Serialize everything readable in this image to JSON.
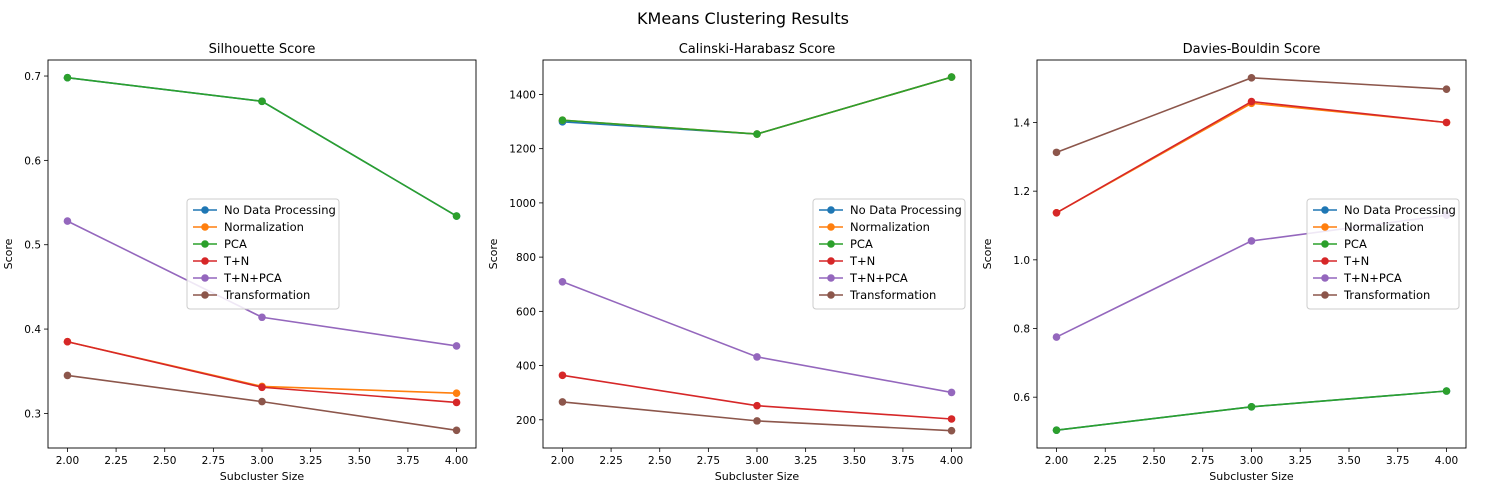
{
  "figure_title": "KMeans Clustering Results",
  "chart_data": [
    {
      "type": "line",
      "title": "Silhouette Score",
      "xlabel": "Subcluster Size",
      "ylabel": "Score",
      "x": [
        2,
        3,
        4
      ],
      "xlim": [
        1.9,
        4.1
      ],
      "ylim": [
        0.259,
        0.719
      ],
      "xticks": [
        "2.00",
        "2.25",
        "2.50",
        "2.75",
        "3.00",
        "3.25",
        "3.50",
        "3.75",
        "4.00"
      ],
      "yticks": [
        "0.3",
        "0.4",
        "0.5",
        "0.6",
        "0.7"
      ],
      "legend_position": "center-right",
      "series": [
        {
          "name": "No Data Processing",
          "color": "#1f77b4",
          "values": [
            0.698,
            0.67,
            0.534
          ]
        },
        {
          "name": "Normalization",
          "color": "#ff7f0e",
          "values": [
            0.385,
            0.332,
            0.324
          ]
        },
        {
          "name": "PCA",
          "color": "#2ca02c",
          "values": [
            0.698,
            0.67,
            0.534
          ]
        },
        {
          "name": "T+N",
          "color": "#d62728",
          "values": [
            0.385,
            0.331,
            0.313
          ]
        },
        {
          "name": "T+N+PCA",
          "color": "#9467bd",
          "values": [
            0.528,
            0.414,
            0.38
          ]
        },
        {
          "name": "Transformation",
          "color": "#8c564b",
          "values": [
            0.345,
            0.314,
            0.28
          ]
        }
      ]
    },
    {
      "type": "line",
      "title": "Calinski-Harabasz Score",
      "xlabel": "Subcluster Size",
      "ylabel": "Score",
      "x": [
        2,
        3,
        4
      ],
      "xlim": [
        1.9,
        4.1
      ],
      "ylim": [
        96,
        1527
      ],
      "xticks": [
        "2.00",
        "2.25",
        "2.50",
        "2.75",
        "3.00",
        "3.25",
        "3.50",
        "3.75",
        "4.00"
      ],
      "yticks": [
        "200",
        "400",
        "600",
        "800",
        "1000",
        "1200",
        "1400"
      ],
      "legend_position": "center-right",
      "series": [
        {
          "name": "No Data Processing",
          "color": "#1f77b4",
          "values": [
            1299,
            1254,
            1464
          ]
        },
        {
          "name": "Normalization",
          "color": "#ff7f0e",
          "values": [
            1305,
            1254,
            1464
          ]
        },
        {
          "name": "PCA",
          "color": "#2ca02c",
          "values": [
            1305,
            1254,
            1464
          ]
        },
        {
          "name": "T+N",
          "color": "#d62728",
          "values": [
            364,
            252,
            203
          ]
        },
        {
          "name": "T+N+PCA",
          "color": "#9467bd",
          "values": [
            709,
            432,
            301
          ]
        },
        {
          "name": "Transformation",
          "color": "#8c564b",
          "values": [
            266,
            196,
            160
          ]
        }
      ]
    },
    {
      "type": "line",
      "title": "Davies-Bouldin Score",
      "xlabel": "Subcluster Size",
      "ylabel": "Score",
      "x": [
        2,
        3,
        4
      ],
      "xlim": [
        1.9,
        4.1
      ],
      "ylim": [
        0.452,
        1.582
      ],
      "xticks": [
        "2.00",
        "2.25",
        "2.50",
        "2.75",
        "3.00",
        "3.25",
        "3.50",
        "3.75",
        "4.00"
      ],
      "yticks": [
        "0.6",
        "0.8",
        "1.0",
        "1.2",
        "1.4"
      ],
      "legend_position": "center-right",
      "series": [
        {
          "name": "No Data Processing",
          "color": "#1f77b4",
          "values": [
            0.504,
            0.572,
            0.618
          ]
        },
        {
          "name": "Normalization",
          "color": "#ff7f0e",
          "values": [
            1.137,
            1.456,
            1.4
          ]
        },
        {
          "name": "PCA",
          "color": "#2ca02c",
          "values": [
            0.504,
            0.572,
            0.618
          ]
        },
        {
          "name": "T+N",
          "color": "#d62728",
          "values": [
            1.137,
            1.461,
            1.4
          ]
        },
        {
          "name": "T+N+PCA",
          "color": "#9467bd",
          "values": [
            0.775,
            1.055,
            1.13
          ]
        },
        {
          "name": "Transformation",
          "color": "#8c564b",
          "values": [
            1.313,
            1.53,
            1.497
          ]
        }
      ]
    }
  ]
}
